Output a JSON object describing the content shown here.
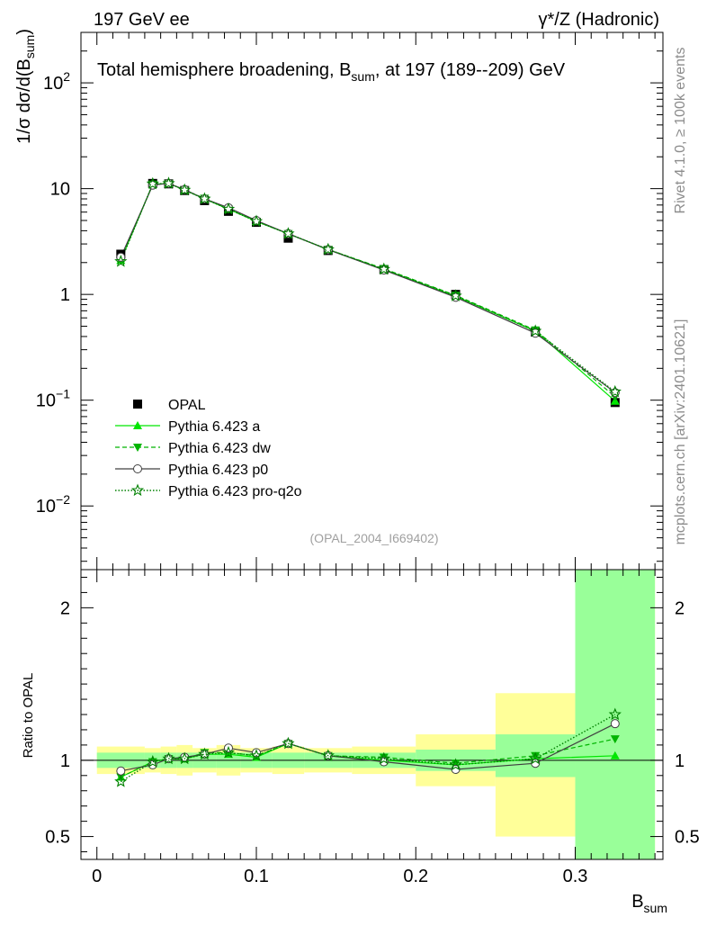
{
  "header": {
    "left": "197 GeV ee",
    "right": "γ*/Z (Hadronic)"
  },
  "side_labels": {
    "rivet": "Rivet 4.1.0, ≥ 100k events",
    "mcplots": "mcplots.cern.ch [arXiv:2401.10621]"
  },
  "colors": {
    "a": "#00e600",
    "dw": "#00b400",
    "p0": "#404040",
    "pro": "#008000",
    "band_inner": "#99ff99",
    "band_outer": "#ffff99",
    "data": "#000000"
  },
  "chart_data": [
    {
      "type": "scatter",
      "title": "Total hemisphere broadening, B_sum, at 197 (189--209) GeV",
      "title_parts": {
        "main": "Total hemisphere broadening, B",
        "sub": "sum",
        "tail": ", at 197 (189--209) GeV"
      },
      "ylabel_parts": {
        "main": "1/σ  dσ/d(B",
        "sub": "sum",
        "tail": ")"
      },
      "yscale": "log",
      "ylim": [
        0.0025,
        300
      ],
      "xlim": [
        -0.01,
        0.355
      ],
      "ytick_labels": [
        {
          "v": 0.01,
          "base": "10",
          "exp": "−2"
        },
        {
          "v": 0.1,
          "base": "10",
          "exp": "−1"
        },
        {
          "v": 1,
          "base": "1",
          "exp": ""
        },
        {
          "v": 10,
          "base": "10",
          "exp": ""
        },
        {
          "v": 100,
          "base": "10",
          "exp": "2"
        }
      ],
      "watermark": "(OPAL_2004_I669402)",
      "legend_position": "lower-left",
      "x": [
        0.015,
        0.035,
        0.045,
        0.055,
        0.0675,
        0.0825,
        0.1,
        0.12,
        0.145,
        0.18,
        0.225,
        0.275,
        0.325
      ],
      "series": [
        {
          "key": "data",
          "name": "OPAL",
          "values": [
            2.4,
            11.2,
            11.1,
            9.6,
            7.7,
            6.1,
            4.8,
            3.4,
            2.6,
            1.72,
            1.0,
            0.44,
            0.095
          ]
        },
        {
          "key": "a",
          "name": "Pythia 6.423 a",
          "values": [
            2.1,
            11.0,
            11.2,
            9.7,
            8.0,
            6.4,
            4.9,
            3.75,
            2.65,
            1.72,
            0.96,
            0.45,
            0.098
          ]
        },
        {
          "key": "dw",
          "name": "Pythia 6.423 dw",
          "values": [
            2.1,
            11.0,
            11.2,
            9.7,
            8.1,
            6.4,
            4.9,
            3.75,
            2.66,
            1.75,
            0.98,
            0.46,
            0.108
          ]
        },
        {
          "key": "p0",
          "name": "Pythia 6.423 p0",
          "values": [
            2.25,
            10.8,
            11.2,
            9.8,
            8.0,
            6.6,
            5.0,
            3.75,
            2.65,
            1.7,
            0.94,
            0.43,
            0.118
          ]
        },
        {
          "key": "pro",
          "name": "Pythia 6.423 pro-q2o",
          "values": [
            2.05,
            11.1,
            11.2,
            9.7,
            8.0,
            6.4,
            4.9,
            3.75,
            2.66,
            1.73,
            0.97,
            0.45,
            0.12
          ]
        }
      ]
    },
    {
      "type": "scatter",
      "ylabel": "Ratio to OPAL",
      "xlabel_parts": {
        "main": "B",
        "sub": "sum"
      },
      "ylim": [
        0.35,
        2.25
      ],
      "xlim": [
        -0.01,
        0.355
      ],
      "reference_line": 1,
      "xtick_labels": [
        {
          "v": 0,
          "t": "0"
        },
        {
          "v": 0.1,
          "t": "0.1"
        },
        {
          "v": 0.2,
          "t": "0.2"
        },
        {
          "v": 0.3,
          "t": "0.3"
        }
      ],
      "ytick_labels": [
        {
          "v": 0.5,
          "t": "0.5"
        },
        {
          "v": 1,
          "t": "1"
        },
        {
          "v": 2,
          "t": "2"
        }
      ],
      "bins": [
        {
          "lo": 0.0,
          "hi": 0.03,
          "inner": [
            0.95,
            1.05
          ],
          "outer": [
            0.91,
            1.09
          ]
        },
        {
          "lo": 0.03,
          "hi": 0.04,
          "inner": [
            0.95,
            1.05
          ],
          "outer": [
            0.92,
            1.08
          ]
        },
        {
          "lo": 0.04,
          "hi": 0.05,
          "inner": [
            0.95,
            1.05
          ],
          "outer": [
            0.91,
            1.09
          ]
        },
        {
          "lo": 0.05,
          "hi": 0.06,
          "inner": [
            0.95,
            1.05
          ],
          "outer": [
            0.9,
            1.1
          ]
        },
        {
          "lo": 0.06,
          "hi": 0.075,
          "inner": [
            0.95,
            1.05
          ],
          "outer": [
            0.92,
            1.08
          ]
        },
        {
          "lo": 0.075,
          "hi": 0.09,
          "inner": [
            0.95,
            1.05
          ],
          "outer": [
            0.9,
            1.1
          ]
        },
        {
          "lo": 0.09,
          "hi": 0.11,
          "inner": [
            0.95,
            1.05
          ],
          "outer": [
            0.92,
            1.08
          ]
        },
        {
          "lo": 0.11,
          "hi": 0.13,
          "inner": [
            0.95,
            1.05
          ],
          "outer": [
            0.91,
            1.09
          ]
        },
        {
          "lo": 0.13,
          "hi": 0.16,
          "inner": [
            0.95,
            1.05
          ],
          "outer": [
            0.92,
            1.08
          ]
        },
        {
          "lo": 0.16,
          "hi": 0.2,
          "inner": [
            0.95,
            1.05
          ],
          "outer": [
            0.91,
            1.09
          ]
        },
        {
          "lo": 0.2,
          "hi": 0.25,
          "inner": [
            0.93,
            1.07
          ],
          "outer": [
            0.83,
            1.17
          ]
        },
        {
          "lo": 0.25,
          "hi": 0.3,
          "inner": [
            0.89,
            1.17
          ],
          "outer": [
            0.5,
            1.44
          ]
        },
        {
          "lo": 0.3,
          "hi": 0.35,
          "inner": [
            0.35,
            2.25
          ],
          "outer": [
            0.35,
            2.25
          ]
        }
      ],
      "x": [
        0.015,
        0.035,
        0.045,
        0.055,
        0.0675,
        0.0825,
        0.1,
        0.12,
        0.145,
        0.18,
        0.225,
        0.275,
        0.325
      ],
      "series": [
        {
          "key": "a",
          "name": "Pythia 6.423 a",
          "values": [
            0.89,
            0.99,
            1.01,
            1.01,
            1.04,
            1.04,
            1.02,
            1.11,
            1.03,
            1.0,
            0.97,
            1.01,
            1.03
          ]
        },
        {
          "key": "dw",
          "name": "Pythia 6.423 dw",
          "values": [
            0.89,
            0.99,
            1.01,
            1.01,
            1.05,
            1.05,
            1.03,
            1.11,
            1.03,
            1.02,
            0.98,
            1.03,
            1.14
          ]
        },
        {
          "key": "p0",
          "name": "Pythia 6.423 p0",
          "values": [
            0.93,
            0.97,
            1.01,
            1.02,
            1.04,
            1.08,
            1.05,
            1.11,
            1.03,
            0.99,
            0.94,
            0.98,
            1.24
          ]
        },
        {
          "key": "pro",
          "name": "Pythia 6.423 pro-q2o",
          "values": [
            0.86,
            0.99,
            1.01,
            1.01,
            1.04,
            1.05,
            1.03,
            1.11,
            1.03,
            1.01,
            0.97,
            1.01,
            1.3
          ]
        }
      ]
    }
  ]
}
